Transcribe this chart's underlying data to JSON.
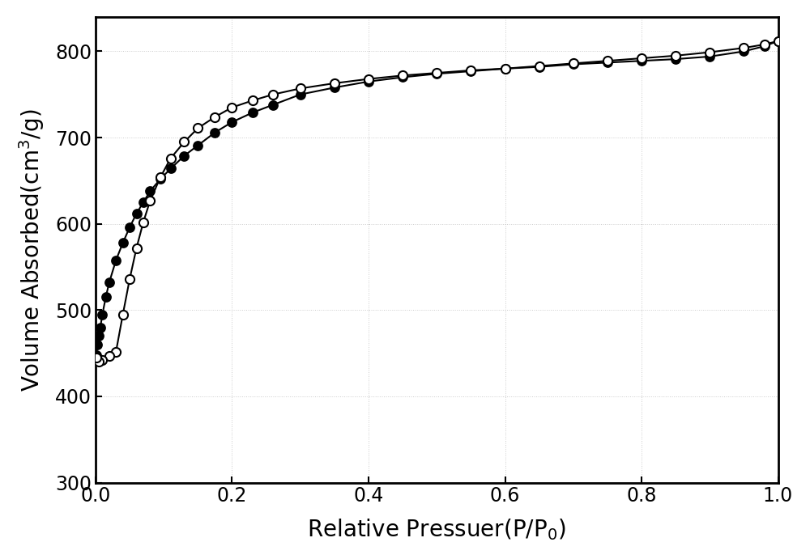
{
  "adsorption_x": [
    0.001,
    0.003,
    0.005,
    0.007,
    0.01,
    0.015,
    0.02,
    0.03,
    0.04,
    0.05,
    0.06,
    0.07,
    0.08,
    0.095,
    0.11,
    0.13,
    0.15,
    0.175,
    0.2,
    0.23,
    0.26,
    0.3,
    0.35,
    0.4,
    0.45,
    0.5,
    0.55,
    0.6,
    0.65,
    0.7,
    0.75,
    0.8,
    0.85,
    0.9,
    0.95,
    0.98,
    1.0
  ],
  "adsorption_y": [
    448,
    460,
    470,
    480,
    495,
    515,
    532,
    558,
    578,
    596,
    612,
    625,
    638,
    652,
    664,
    679,
    691,
    706,
    718,
    729,
    738,
    750,
    758,
    765,
    770,
    774,
    777,
    780,
    782,
    785,
    787,
    789,
    791,
    794,
    800,
    806,
    812
  ],
  "desorption_x": [
    1.0,
    0.98,
    0.95,
    0.9,
    0.85,
    0.8,
    0.75,
    0.7,
    0.65,
    0.6,
    0.55,
    0.5,
    0.45,
    0.4,
    0.35,
    0.3,
    0.26,
    0.23,
    0.2,
    0.175,
    0.15,
    0.13,
    0.11,
    0.095,
    0.08,
    0.07,
    0.06,
    0.05,
    0.04,
    0.03,
    0.02,
    0.01,
    0.005,
    0.001
  ],
  "desorption_y": [
    812,
    808,
    804,
    799,
    795,
    792,
    789,
    786,
    783,
    780,
    778,
    775,
    772,
    768,
    763,
    757,
    750,
    743,
    735,
    724,
    711,
    695,
    676,
    654,
    627,
    602,
    572,
    536,
    495,
    452,
    447,
    442,
    440,
    445
  ],
  "xlabel": "Relative Pressuer(P/P$_0$)",
  "ylabel": "Volume Absorbed(cm$^3$/g)",
  "xlim": [
    0.0,
    1.0
  ],
  "ylim": [
    300,
    840
  ],
  "yticks": [
    300,
    400,
    500,
    600,
    700,
    800
  ],
  "xticks": [
    0.0,
    0.2,
    0.4,
    0.6,
    0.8,
    1.0
  ],
  "background_color": "#ffffff",
  "plot_bg_color": "#ffffff",
  "line_color": "#000000",
  "marker_size": 8,
  "line_width": 1.5,
  "xlabel_fontsize": 20,
  "ylabel_fontsize": 20,
  "tick_fontsize": 17,
  "grid_color": "#cccccc",
  "grid_style": ":"
}
